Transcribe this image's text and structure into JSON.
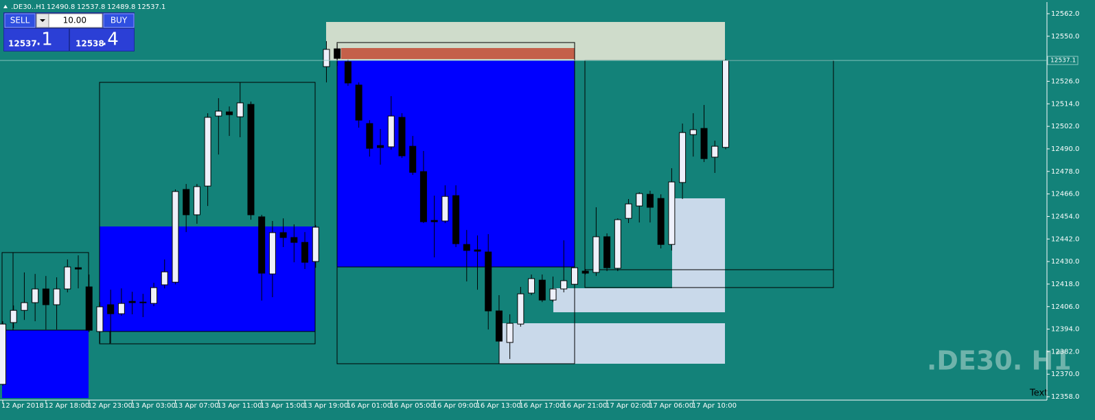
{
  "header": {
    "symbol": ".DE30..H1"
  },
  "trade_panel": {
    "sell": "SELL",
    "buy": "BUY",
    "lot": "10.00",
    "bid_main": "12537",
    "bid_frac": ".1",
    "ask_main": "12538",
    "ask_frac": ".4"
  },
  "watermark": ".DE30. H1",
  "text_object": "Text",
  "chart_data": {
    "type": "candlestick",
    "background": "#138279",
    "up_color": "#eef0fa",
    "down_color": "#000000",
    "current_price": 12537.1,
    "ylim": [
      12356.2,
      12568.2
    ],
    "yticks": [
      {
        "value": 12358,
        "label": "12358.0"
      },
      {
        "value": 12370,
        "label": "12370.0"
      },
      {
        "value": 12382,
        "label": "12382.0"
      },
      {
        "value": 12394,
        "label": "12394.0"
      },
      {
        "value": 12406,
        "label": "12406.0"
      },
      {
        "value": 12418,
        "label": "12418.0"
      },
      {
        "value": 12430,
        "label": "12430.0"
      },
      {
        "value": 12442,
        "label": "12442.0"
      },
      {
        "value": 12454,
        "label": "12454.0"
      },
      {
        "value": 12466,
        "label": "12466.0"
      },
      {
        "value": 12478,
        "label": "12478.0"
      },
      {
        "value": 12490,
        "label": "12490.0"
      },
      {
        "value": 12502,
        "label": "12502.0"
      },
      {
        "value": 12514,
        "label": "12514.0"
      },
      {
        "value": 12526,
        "label": "12526.0"
      },
      {
        "value": 12550,
        "label": "12550.0"
      },
      {
        "value": 12562,
        "label": "12562.0"
      }
    ],
    "categories": [
      "12 Apr 2018",
      null,
      null,
      null,
      "12 Apr 18:00",
      null,
      null,
      null,
      "12 Apr 23:00",
      null,
      null,
      null,
      "13 Apr 03:00",
      null,
      null,
      null,
      "13 Apr 07:00",
      null,
      null,
      null,
      "13 Apr 11:00",
      null,
      null,
      null,
      "13 Apr 15:00",
      null,
      null,
      null,
      "13 Apr 19:00",
      null,
      null,
      null,
      "16 Apr 01:00",
      null,
      null,
      null,
      "16 Apr 05:00",
      null,
      null,
      null,
      "16 Apr 09:00",
      null,
      null,
      null,
      "16 Apr 13:00",
      null,
      null,
      null,
      "16 Apr 17:00",
      null,
      null,
      null,
      "16 Apr 21:00",
      null,
      null,
      null,
      "17 Apr 02:00",
      null,
      null,
      null,
      "17 Apr 06:00",
      null,
      null,
      null,
      "17 Apr 10:00",
      null,
      null,
      null
    ],
    "open": [
      12364.6,
      12397.5,
      12404.0,
      12408.1,
      12415.4,
      12407.0,
      12415.4,
      12426.7,
      12416.5,
      12392.7,
      12407.0,
      12402.2,
      12408.8,
      12408.1,
      12407.7,
      12417.6,
      12419.0,
      12468.4,
      12454.9,
      12470.2,
      12507.5,
      12509.7,
      12507.1,
      12513.7,
      12453.8,
      12423.4,
      12445.4,
      12442.8,
      12440.2,
      12430.0,
      12533.8,
      12543.3,
      12536.4,
      12524.0,
      12503.5,
      12491.8,
      12491.1,
      12506.8,
      12491.4,
      12477.9,
      12451.9,
      12451.6,
      12465.1,
      12439.1,
      12436.2,
      12435.1,
      12403.7,
      12386.9,
      12396.7,
      12413.2,
      12420.1,
      12409.5,
      12415.4,
      12417.9,
      12424.9,
      12424.2,
      12443.2,
      12426.4,
      12453.0,
      12459.6,
      12465.8,
      12463.6,
      12439.1,
      12472.1,
      12497.6,
      12500.9,
      12485.6,
      12490.8
    ],
    "high": [
      12398.2,
      12406.6,
      12424.2,
      12423.4,
      12422.3,
      12421.6,
      12431.1,
      12433.3,
      12423.1,
      12408.4,
      12415.0,
      12415.7,
      12413.9,
      12412.8,
      12418.7,
      12431.1,
      12468.4,
      12471.3,
      12471.3,
      12509.0,
      12517.0,
      12512.6,
      12525.4,
      12515.2,
      12454.9,
      12451.6,
      12453.0,
      12449.8,
      12445.7,
      12449.4,
      12547.4,
      12545.9,
      12537.5,
      12525.4,
      12505.3,
      12500.6,
      12518.1,
      12509.0,
      12496.9,
      12488.9,
      12465.1,
      12470.6,
      12470.6,
      12446.8,
      12443.9,
      12444.6,
      12412.1,
      12401.9,
      12416.5,
      12423.1,
      12423.1,
      12422.0,
      12441.3,
      12427.1,
      12426.0,
      12458.9,
      12445.0,
      12453.0,
      12463.3,
      12466.9,
      12467.7,
      12465.8,
      12479.7,
      12503.5,
      12509.0,
      12513.4,
      12494.4,
      12537.8
    ],
    "low": [
      12363.8,
      12394.5,
      12398.9,
      12398.2,
      12393.8,
      12393.8,
      12413.6,
      12415.7,
      12392.4,
      12386.5,
      12386.5,
      12401.1,
      12401.9,
      12400.4,
      12406.2,
      12415.7,
      12417.9,
      12445.7,
      12450.1,
      12459.6,
      12487.0,
      12496.9,
      12496.2,
      12452.3,
      12409.2,
      12411.0,
      12437.7,
      12429.6,
      12426.0,
      12426.7,
      12525.4,
      12534.2,
      12523.6,
      12501.3,
      12485.9,
      12481.6,
      12489.6,
      12485.2,
      12476.1,
      12450.5,
      12432.2,
      12450.5,
      12437.7,
      12419.4,
      12415.0,
      12393.8,
      12386.5,
      12378.1,
      12395.3,
      12412.1,
      12408.4,
      12408.4,
      12413.6,
      12415.7,
      12423.1,
      12422.3,
      12424.9,
      12424.9,
      12450.5,
      12450.8,
      12450.8,
      12437.0,
      12435.9,
      12463.3,
      12485.9,
      12483.0,
      12477.2,
      12489.8
    ],
    "close": [
      12396.7,
      12404.0,
      12408.1,
      12415.4,
      12407.0,
      12415.4,
      12427.1,
      12426.0,
      12393.4,
      12405.9,
      12402.2,
      12407.7,
      12408.1,
      12408.4,
      12416.1,
      12424.5,
      12467.3,
      12454.9,
      12469.9,
      12506.8,
      12510.1,
      12508.2,
      12514.5,
      12454.9,
      12423.8,
      12445.4,
      12442.8,
      12440.2,
      12429.6,
      12448.3,
      12543.0,
      12538.2,
      12525.1,
      12505.3,
      12490.3,
      12490.7,
      12507.5,
      12486.3,
      12477.5,
      12451.2,
      12451.2,
      12464.7,
      12439.5,
      12435.9,
      12435.5,
      12403.7,
      12387.6,
      12397.1,
      12412.8,
      12420.9,
      12409.5,
      12415.4,
      12419.8,
      12426.7,
      12423.8,
      12443.2,
      12426.7,
      12452.3,
      12460.7,
      12466.2,
      12458.9,
      12439.1,
      12472.4,
      12498.7,
      12500.2,
      12484.8,
      12491.4,
      12537.1
    ]
  }
}
